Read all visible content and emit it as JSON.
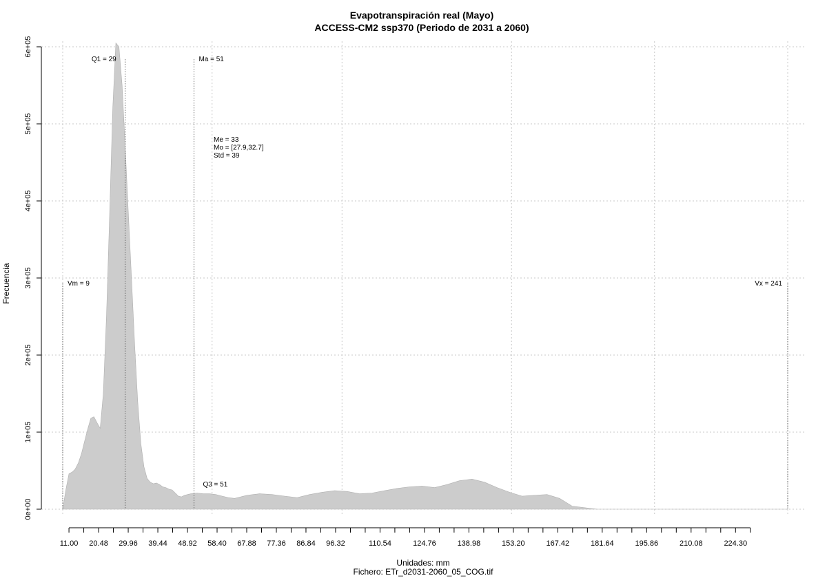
{
  "chart_data": {
    "type": "area",
    "title": "Evapotranspiración real (Mayo)",
    "subtitle": "ACCESS-CM2 ssp370 (Periodo de 2031 a 2060)",
    "xlabel": "Unidades: mm",
    "ylabel": "Frecuencia",
    "caption": "Fichero: ETr_d2031-2060_05_COG.tif",
    "xlim": [
      9,
      241
    ],
    "ylim": [
      0,
      600000
    ],
    "grid": true,
    "fill_color": "#cccccc",
    "x_ticks": [
      11.0,
      20.48,
      29.96,
      39.44,
      48.92,
      58.4,
      67.88,
      77.36,
      86.84,
      96.32,
      110.54,
      124.76,
      138.98,
      153.2,
      167.42,
      181.64,
      195.86,
      210.08,
      224.3
    ],
    "x_tick_labels": [
      "11.00",
      "20.48",
      "29.96",
      "39.44",
      "48.92",
      "58.40",
      "67.88",
      "77.36",
      "86.84",
      "96.32",
      "110.54",
      "124.76",
      "138.98",
      "153.20",
      "167.42",
      "181.64",
      "195.86",
      "210.08",
      "224.30"
    ],
    "y_ticks": [
      0,
      100000,
      200000,
      300000,
      400000,
      500000,
      600000
    ],
    "y_tick_labels": [
      "0e+00",
      "1e+05",
      "2e+05",
      "3e+05",
      "4e+05",
      "5e+05",
      "6e+05"
    ],
    "series": [
      {
        "x": [
          9,
          10,
          11,
          12,
          13,
          14,
          15,
          16,
          17,
          18,
          19,
          20,
          21,
          22,
          23,
          24,
          25,
          26,
          27,
          28,
          29,
          30,
          31,
          32,
          33,
          34,
          35,
          36,
          37,
          38,
          39,
          40,
          41,
          42,
          43,
          44,
          45,
          46,
          47,
          48,
          50,
          52,
          54,
          56,
          58,
          60,
          62,
          64,
          66,
          68,
          72,
          76,
          80,
          84,
          88,
          92,
          96,
          100,
          104,
          108,
          112,
          116,
          120,
          124,
          128,
          132,
          136,
          140,
          144,
          148,
          152,
          156,
          160,
          164,
          168,
          172,
          180,
          200,
          220,
          241
        ],
        "y": [
          0,
          25000,
          46000,
          48000,
          52000,
          60000,
          72000,
          88000,
          104000,
          118000,
          120000,
          112000,
          105000,
          150000,
          250000,
          380000,
          520000,
          605000,
          600000,
          550000,
          470000,
          385000,
          300000,
          215000,
          140000,
          85000,
          55000,
          40000,
          35000,
          33000,
          34000,
          32000,
          29000,
          28000,
          26000,
          25000,
          21000,
          17000,
          16000,
          18000,
          20000,
          21000,
          20000,
          20000,
          19000,
          17000,
          15000,
          14000,
          16000,
          18000,
          20000,
          19000,
          17000,
          15000,
          19000,
          22000,
          24000,
          23000,
          20000,
          21000,
          24000,
          27000,
          29000,
          30000,
          28000,
          32000,
          37000,
          39000,
          35000,
          28000,
          22000,
          17000,
          18000,
          19000,
          14000,
          4000,
          0,
          0,
          0,
          0
        ]
      }
    ],
    "annotations": {
      "q1": {
        "x": 29,
        "label": "Q1 = 29"
      },
      "ma": {
        "x": 51,
        "label": "Ma = 51"
      },
      "q3": {
        "x": 51,
        "label": "Q3 = 51"
      },
      "vm": {
        "x": 9,
        "label": "Vm = 9"
      },
      "vx": {
        "x": 241,
        "label": "Vx = 241"
      },
      "stats": [
        "Me = 33",
        "Mo = [27.9,32.7]",
        "Std = 39"
      ]
    }
  }
}
